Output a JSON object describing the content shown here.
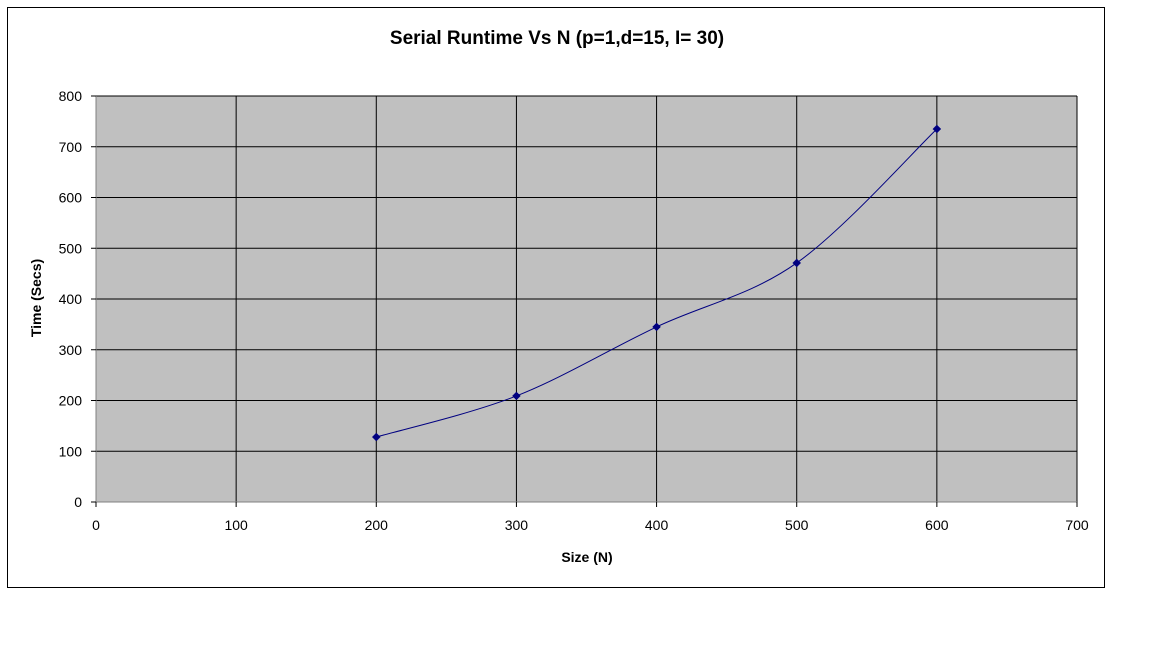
{
  "chart_data": {
    "type": "scatter",
    "title": "Serial Runtime Vs N  (p=1,d=15, I= 30)",
    "xlabel": "Size  (N)",
    "ylabel": "Time (Secs)",
    "xlim": [
      0,
      700
    ],
    "ylim": [
      0,
      800
    ],
    "x_ticks": [
      0,
      100,
      200,
      300,
      400,
      500,
      600,
      700
    ],
    "y_ticks": [
      0,
      100,
      200,
      300,
      400,
      500,
      600,
      700,
      800
    ],
    "grid": true,
    "legend": "none",
    "series": [
      {
        "x": [
          200,
          300,
          400,
          500,
          600
        ],
        "y": [
          128,
          209,
          345,
          471,
          735
        ],
        "color": "#000080",
        "line": "smoothed",
        "marker": "diamond"
      }
    ],
    "plot_background": "#c0c0c0"
  }
}
